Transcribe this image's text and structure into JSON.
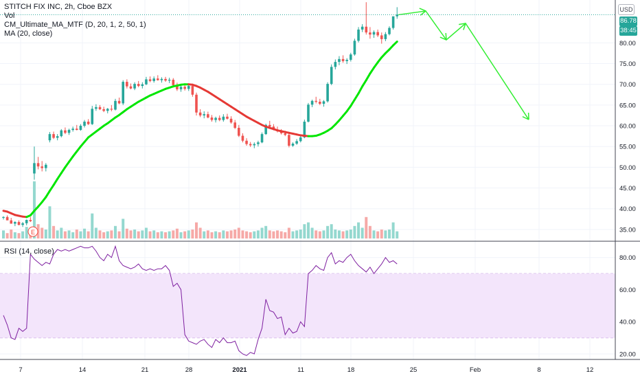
{
  "header": {
    "title": "STITCH FIX INC, 2h, Cboe BZX",
    "indicators": [
      "Vol",
      "CM_Ultimate_MA_MTF (D, 20, 1, 2, 50, 1)",
      "MA (20, close)"
    ],
    "scale_button": "USD"
  },
  "price_axis": {
    "ticks": [
      "80.00",
      "75.00",
      "70.00",
      "65.00",
      "60.00",
      "55.00",
      "50.00",
      "45.00",
      "40.00",
      "35.00"
    ],
    "last_price": "86.78",
    "countdown": "38:45",
    "last_price_color": "#26a69a",
    "countdown_color": "#26a69a"
  },
  "rsi_pane": {
    "label": "RSI (14, close)",
    "ticks": [
      "80.00",
      "60.00",
      "40.00",
      "20.00"
    ],
    "band_upper": 70,
    "band_lower": 30,
    "band_color": "#f3e5fb"
  },
  "time_axis": {
    "labels": [
      "7",
      "14",
      "21",
      "28",
      "2021",
      "11",
      "18",
      "25",
      "Feb",
      "8",
      "12"
    ]
  },
  "earnings_marker": "E",
  "colors": {
    "up": "#26a69a",
    "down": "#ef5350",
    "ma_up": "#00e600",
    "ma_down": "#e53935",
    "rsi_line": "#7e1fa0",
    "projection": "#33ee33"
  },
  "chart_data": {
    "type": "candlestick",
    "price_range": [
      32,
      90
    ],
    "rsi_range": [
      17,
      88
    ],
    "candles": [
      [
        37.8,
        38.2,
        37.4,
        38.0
      ],
      [
        38.0,
        38.4,
        37.5,
        37.2
      ],
      [
        37.2,
        37.8,
        36.8,
        36.4
      ],
      [
        36.4,
        37.0,
        35.8,
        36.8
      ],
      [
        36.8,
        37.2,
        36.0,
        36.1
      ],
      [
        36.1,
        36.8,
        35.6,
        36.5
      ],
      [
        36.5,
        37.4,
        36.0,
        37.3
      ],
      [
        37.3,
        38.0,
        36.8,
        37.0
      ],
      [
        48.5,
        55.0,
        47.0,
        51.0
      ],
      [
        51.0,
        52.5,
        49.5,
        50.2
      ],
      [
        50.2,
        51.5,
        49.0,
        49.8
      ],
      [
        49.8,
        51.0,
        49.0,
        50.6
      ],
      [
        56.5,
        58.5,
        56.0,
        58.0
      ],
      [
        58.0,
        58.6,
        56.8,
        57.1
      ],
      [
        57.1,
        58.0,
        56.5,
        57.5
      ],
      [
        57.5,
        59.2,
        57.2,
        58.9
      ],
      [
        58.9,
        59.6,
        58.0,
        58.3
      ],
      [
        58.3,
        59.3,
        57.8,
        59.0
      ],
      [
        59.0,
        59.8,
        58.6,
        59.3
      ],
      [
        59.3,
        60.2,
        58.9,
        59.0
      ],
      [
        59.0,
        60.4,
        58.8,
        60.0
      ],
      [
        60.0,
        61.4,
        59.6,
        61.0
      ],
      [
        61.0,
        61.6,
        60.2,
        60.4
      ],
      [
        60.4,
        64.8,
        60.2,
        64.1
      ],
      [
        64.1,
        65.2,
        63.6,
        64.5
      ],
      [
        64.5,
        65.0,
        63.8,
        64.0
      ],
      [
        64.0,
        64.6,
        63.3,
        63.6
      ],
      [
        63.6,
        64.3,
        63.0,
        64.1
      ],
      [
        64.1,
        65.0,
        63.5,
        63.9
      ],
      [
        63.9,
        66.5,
        63.7,
        66.0
      ],
      [
        66.0,
        66.8,
        65.2,
        65.4
      ],
      [
        65.4,
        71.0,
        65.0,
        70.6
      ],
      [
        70.6,
        71.2,
        69.0,
        69.5
      ],
      [
        69.5,
        70.2,
        68.8,
        69.0
      ],
      [
        69.0,
        70.5,
        68.6,
        70.1
      ],
      [
        70.1,
        70.8,
        69.3,
        69.6
      ],
      [
        69.6,
        70.5,
        69.0,
        70.0
      ],
      [
        70.0,
        71.8,
        69.8,
        71.2
      ],
      [
        71.2,
        71.9,
        70.5,
        70.8
      ],
      [
        70.8,
        71.9,
        70.4,
        71.4
      ],
      [
        71.4,
        72.2,
        70.9,
        71.0
      ],
      [
        71.0,
        71.7,
        70.4,
        71.3
      ],
      [
        71.3,
        71.8,
        70.6,
        70.9
      ],
      [
        70.9,
        71.6,
        70.3,
        71.1
      ],
      [
        71.1,
        71.5,
        69.5,
        69.8
      ],
      [
        69.8,
        70.4,
        68.4,
        68.8
      ],
      [
        68.8,
        69.8,
        68.2,
        69.4
      ],
      [
        69.4,
        70.0,
        68.5,
        68.9
      ],
      [
        68.9,
        70.0,
        68.4,
        69.6
      ],
      [
        69.6,
        70.1,
        67.0,
        67.5
      ],
      [
        67.5,
        68.0,
        62.5,
        63.2
      ],
      [
        63.2,
        64.0,
        62.1,
        62.5
      ],
      [
        62.5,
        63.5,
        61.8,
        62.8
      ],
      [
        62.8,
        63.4,
        61.8,
        62.0
      ],
      [
        62.0,
        62.6,
        61.0,
        61.4
      ],
      [
        61.4,
        62.2,
        60.8,
        61.9
      ],
      [
        61.9,
        62.5,
        61.1,
        61.4
      ],
      [
        61.4,
        62.8,
        61.0,
        62.2
      ],
      [
        62.2,
        62.9,
        61.5,
        61.7
      ],
      [
        61.7,
        62.3,
        60.5,
        60.8
      ],
      [
        60.8,
        61.4,
        59.2,
        59.5
      ],
      [
        59.5,
        60.2,
        57.3,
        57.6
      ],
      [
        57.6,
        58.2,
        56.0,
        56.4
      ],
      [
        56.4,
        57.0,
        55.2,
        55.6
      ],
      [
        55.6,
        56.1,
        54.9,
        55.3
      ],
      [
        55.3,
        56.0,
        54.6,
        55.6
      ],
      [
        55.6,
        56.4,
        55.0,
        56.0
      ],
      [
        56.0,
        58.4,
        55.8,
        58.0
      ],
      [
        58.0,
        60.5,
        57.8,
        60.2
      ],
      [
        60.2,
        61.2,
        59.4,
        59.8
      ],
      [
        59.8,
        60.4,
        58.9,
        59.1
      ],
      [
        59.1,
        59.8,
        58.4,
        58.7
      ],
      [
        58.7,
        59.2,
        57.9,
        58.2
      ],
      [
        58.2,
        58.8,
        57.5,
        57.8
      ],
      [
        57.8,
        58.3,
        54.8,
        55.2
      ],
      [
        55.2,
        56.0,
        54.9,
        55.7
      ],
      [
        55.7,
        56.8,
        55.4,
        56.3
      ],
      [
        56.3,
        57.6,
        56.0,
        57.2
      ],
      [
        57.2,
        61.5,
        57.0,
        61.0
      ],
      [
        61.0,
        65.5,
        60.8,
        65.1
      ],
      [
        65.1,
        66.3,
        64.5,
        66.0
      ],
      [
        66.0,
        67.0,
        65.4,
        65.8
      ],
      [
        65.8,
        66.5,
        65.0,
        65.3
      ],
      [
        65.3,
        66.2,
        64.6,
        65.9
      ],
      [
        65.9,
        70.5,
        65.6,
        70.1
      ],
      [
        70.1,
        74.8,
        69.8,
        74.2
      ],
      [
        74.2,
        76.0,
        73.6,
        75.4
      ],
      [
        75.4,
        76.8,
        74.6,
        76.1
      ],
      [
        76.1,
        77.0,
        75.2,
        75.6
      ],
      [
        75.6,
        76.3,
        74.9,
        75.9
      ],
      [
        75.9,
        77.6,
        75.5,
        77.2
      ],
      [
        77.2,
        81.0,
        76.9,
        80.5
      ],
      [
        80.5,
        83.8,
        80.1,
        83.2
      ],
      [
        83.2,
        84.5,
        82.6,
        83.9
      ],
      [
        83.9,
        89.8,
        82.0,
        82.5
      ],
      [
        82.5,
        83.8,
        81.0,
        82.0
      ],
      [
        82.0,
        83.0,
        81.2,
        82.6
      ],
      [
        82.6,
        83.2,
        81.4,
        81.8
      ],
      [
        81.8,
        82.5,
        79.8,
        80.9
      ],
      [
        80.9,
        82.6,
        80.4,
        82.1
      ],
      [
        82.1,
        84.0,
        81.8,
        83.6
      ],
      [
        83.6,
        86.0,
        83.2,
        86.4
      ],
      [
        86.4,
        88.6,
        85.8,
        86.78
      ]
    ],
    "volumes": [
      9,
      6,
      10,
      7,
      6,
      8,
      13,
      12,
      64,
      16,
      12,
      10,
      36,
      14,
      9,
      12,
      8,
      9,
      7,
      10,
      8,
      11,
      8,
      28,
      12,
      9,
      7,
      8,
      9,
      14,
      8,
      22,
      11,
      9,
      10,
      8,
      9,
      12,
      8,
      9,
      7,
      8,
      7,
      8,
      9,
      11,
      7,
      8,
      9,
      10,
      18,
      12,
      8,
      9,
      7,
      8,
      7,
      9,
      8,
      9,
      10,
      12,
      9,
      8,
      7,
      8,
      9,
      12,
      14,
      9,
      8,
      9,
      8,
      7,
      12,
      8,
      9,
      10,
      16,
      18,
      12,
      9,
      8,
      9,
      14,
      16,
      10,
      9,
      8,
      9,
      10,
      14,
      18,
      12,
      24,
      14,
      9,
      8,
      10,
      9,
      10,
      18,
      8
    ],
    "volume_spikes": [
      0,
      0,
      0,
      0,
      0,
      0,
      0,
      0,
      64,
      0,
      0,
      0,
      36,
      0,
      0,
      0,
      0,
      0,
      0,
      0,
      0,
      0,
      0,
      28,
      0,
      0,
      0,
      0,
      0,
      0,
      0,
      22,
      0,
      0,
      0,
      0,
      0,
      0,
      0,
      0,
      0,
      0,
      0,
      0,
      0,
      0,
      0,
      0,
      0,
      0,
      0,
      0,
      0,
      0,
      0,
      0,
      0,
      0,
      0,
      0,
      0,
      0,
      0,
      0,
      0,
      0,
      0,
      0,
      0,
      0,
      0,
      0,
      0,
      0,
      0,
      0,
      0,
      0,
      0,
      0,
      0,
      0,
      0,
      0,
      0,
      0,
      0,
      0,
      0,
      0,
      0,
      0,
      0,
      0,
      0,
      0,
      0,
      0,
      0,
      0,
      0,
      0,
      0
    ],
    "ma": [
      39.5,
      39.3,
      38.9,
      38.5,
      38.3,
      38.1,
      38.0,
      38.4,
      39.5,
      40.5,
      41.6,
      42.8,
      44.3,
      45.7,
      47.2,
      48.6,
      50.0,
      51.3,
      52.6,
      53.8,
      55.0,
      56.1,
      57.2,
      57.9,
      58.6,
      59.3,
      60.0,
      60.6,
      61.3,
      62.0,
      62.6,
      63.3,
      64.0,
      64.6,
      65.2,
      65.8,
      66.3,
      66.8,
      67.3,
      67.7,
      68.1,
      68.5,
      68.9,
      69.2,
      69.5,
      69.7,
      69.9,
      70.0,
      70.0,
      69.9,
      69.6,
      69.2,
      68.7,
      68.2,
      67.6,
      67.0,
      66.4,
      65.8,
      65.2,
      64.6,
      64.0,
      63.4,
      62.8,
      62.2,
      61.7,
      61.2,
      60.7,
      60.2,
      59.8,
      59.5,
      59.2,
      58.9,
      58.7,
      58.5,
      58.3,
      58.1,
      57.9,
      57.7,
      57.6,
      57.5,
      57.5,
      57.6,
      57.9,
      58.3,
      58.8,
      59.4,
      60.3,
      61.3,
      62.4,
      63.5,
      64.8,
      66.3,
      67.8,
      69.5,
      71.0,
      72.6,
      74.0,
      75.3,
      76.5,
      77.5,
      78.4,
      79.4,
      80.3
    ],
    "rsi": [
      44,
      38,
      30,
      29,
      36,
      34,
      36,
      82,
      79,
      77,
      75,
      77,
      76,
      82,
      85,
      84,
      85,
      84,
      85,
      86,
      87,
      86,
      86,
      87,
      84,
      80,
      78,
      82,
      80,
      87,
      78,
      75,
      74,
      73,
      74,
      76,
      73,
      72,
      73,
      72,
      73,
      73,
      75,
      72,
      62,
      64,
      60,
      32,
      28,
      27,
      26,
      28,
      29,
      26,
      24,
      29,
      27,
      30,
      27,
      27,
      28,
      22,
      20,
      19,
      21,
      20,
      29,
      36,
      54,
      47,
      46,
      42,
      43,
      32,
      36,
      33,
      34,
      40,
      37,
      70,
      72,
      75,
      73,
      72,
      80,
      83,
      76,
      78,
      77,
      80,
      82,
      78,
      75,
      73,
      71,
      74,
      70,
      73,
      76,
      80,
      77,
      78,
      76
    ],
    "rsi_secondary_close": 76.8
  }
}
